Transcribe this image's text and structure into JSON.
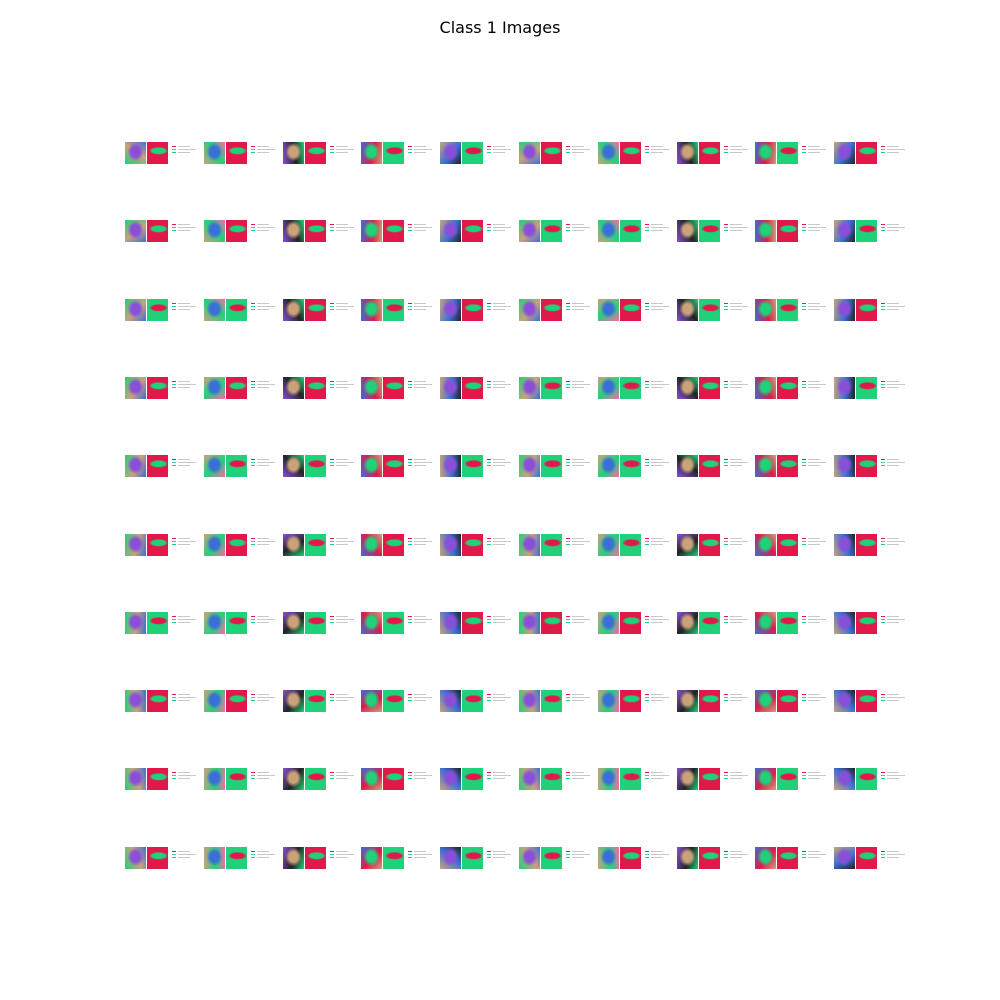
{
  "figure": {
    "title": "Class 1 Images"
  },
  "grid": {
    "rows": 10,
    "cols": 10,
    "tile_count": 100
  },
  "palette": {
    "green": "#1fd27a",
    "red": "#e0194a",
    "purple": "#8a4fd8",
    "blue": "#3a6fd6",
    "tan": "#c9a27a",
    "dark": "#222222",
    "pink": "#ff66aa",
    "legend_red": "#e0194a",
    "legend_cyan": "#35c9c0",
    "legend_green": "#1fd27a"
  },
  "tiles_dominant_right_panel": [
    [
      "red",
      "red",
      "red",
      "green",
      "green",
      "red",
      "red",
      "red",
      "green",
      "red"
    ],
    [
      "red",
      "red",
      "red",
      "red",
      "red",
      "green",
      "green",
      "green",
      "red",
      "green"
    ],
    [
      "green",
      "green",
      "red",
      "green",
      "red",
      "red",
      "red",
      "green",
      "green",
      "red"
    ],
    [
      "red",
      "red",
      "red",
      "red",
      "red",
      "green",
      "green",
      "red",
      "red",
      "green"
    ],
    [
      "red",
      "green",
      "green",
      "red",
      "green",
      "green",
      "green",
      "red",
      "red",
      "red"
    ],
    [
      "red",
      "red",
      "green",
      "red",
      "red",
      "green",
      "green",
      "red",
      "red",
      "red"
    ],
    [
      "green",
      "green",
      "green",
      "green",
      "red",
      "red",
      "red",
      "green",
      "green",
      "red"
    ],
    [
      "red",
      "red",
      "green",
      "green",
      "green",
      "green",
      "red",
      "red",
      "red",
      "red"
    ],
    [
      "red",
      "green",
      "green",
      "red",
      "green",
      "green",
      "green",
      "red",
      "green",
      "green"
    ],
    [
      "red",
      "green",
      "red",
      "green",
      "green",
      "green",
      "red",
      "red",
      "red",
      "red"
    ]
  ]
}
